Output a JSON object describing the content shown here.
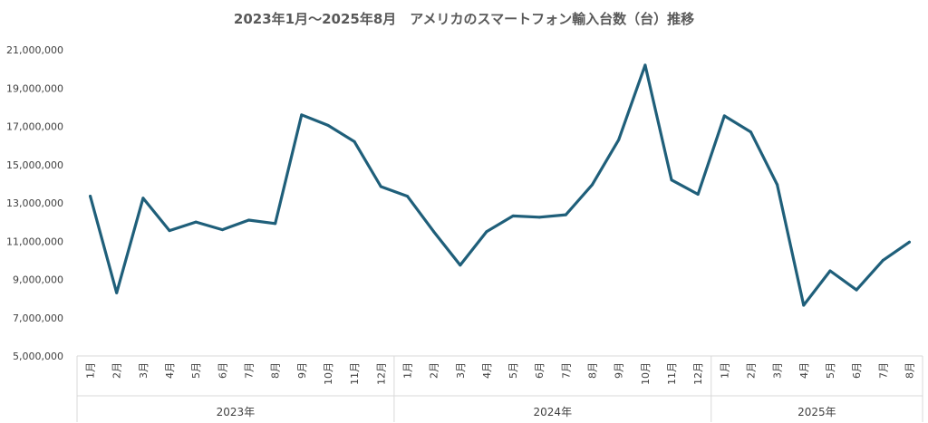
{
  "chart_data": {
    "type": "line",
    "title": "2023年1月～2025年8月　アメリカのスマートフォン輸入台数（台）推移",
    "xlabel": "",
    "ylabel": "",
    "ylim": [
      5000000,
      21000000
    ],
    "yticks": [
      5000000,
      7000000,
      9000000,
      11000000,
      13000000,
      15000000,
      17000000,
      19000000,
      21000000
    ],
    "ytick_labels": [
      "5,000,000",
      "7,000,000",
      "9,000,000",
      "11,000,000",
      "13,000,000",
      "15,000,000",
      "17,000,000",
      "19,000,000",
      "21,000,000"
    ],
    "grid": false,
    "legend": "none",
    "line_color": "#1f5f7a",
    "groups": [
      {
        "label": "2023年",
        "months": [
          "1月",
          "2月",
          "3月",
          "4月",
          "5月",
          "6月",
          "7月",
          "8月",
          "9月",
          "10月",
          "11月",
          "12月"
        ]
      },
      {
        "label": "2024年",
        "months": [
          "1月",
          "2月",
          "3月",
          "4月",
          "5月",
          "6月",
          "7月",
          "8月",
          "9月",
          "10月",
          "11月",
          "12月"
        ]
      },
      {
        "label": "2025年",
        "months": [
          "1月",
          "2月",
          "3月",
          "4月",
          "5月",
          "6月",
          "7月",
          "8月"
        ]
      }
    ],
    "series": [
      {
        "values": [
          13350000,
          8300000,
          13250000,
          11550000,
          12000000,
          11600000,
          12100000,
          11920000,
          17600000,
          17050000,
          16200000,
          13850000,
          13350000,
          11500000,
          9750000,
          11500000,
          12320000,
          12250000,
          12380000,
          13950000,
          16300000,
          20200000,
          14200000,
          13450000,
          17550000,
          16700000,
          13950000,
          7650000,
          9450000,
          8450000,
          10000000,
          10950000
        ]
      }
    ]
  }
}
